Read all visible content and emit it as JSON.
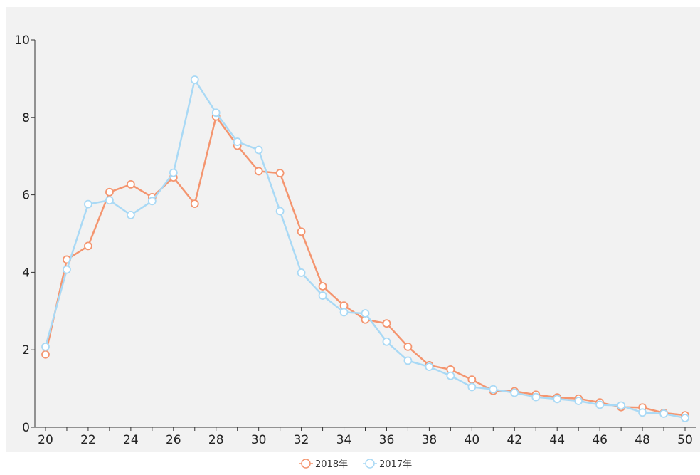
{
  "chart_data": {
    "type": "line",
    "title": "",
    "xlabel": "",
    "ylabel": "",
    "xlim": [
      20,
      50
    ],
    "ylim": [
      0,
      10
    ],
    "x_ticks": [
      "20",
      "22",
      "24",
      "26",
      "28",
      "30",
      "32",
      "34",
      "36",
      "38",
      "40",
      "42",
      "44",
      "46",
      "48",
      "50"
    ],
    "y_ticks": [
      "0",
      "2",
      "4",
      "6",
      "8",
      "10"
    ],
    "grid": false,
    "legend_position": "bottom-center",
    "x": [
      20,
      21,
      22,
      23,
      24,
      25,
      26,
      27,
      28,
      29,
      30,
      31,
      32,
      33,
      34,
      35,
      36,
      37,
      38,
      39,
      40,
      41,
      42,
      43,
      44,
      45,
      46,
      47,
      48,
      49,
      50
    ],
    "series": [
      {
        "name": "2018年",
        "color": "#f4956f",
        "values": [
          1.88,
          4.33,
          4.68,
          6.07,
          6.27,
          5.94,
          6.45,
          5.77,
          8.02,
          7.27,
          6.61,
          6.56,
          5.05,
          3.64,
          3.14,
          2.78,
          2.68,
          2.08,
          1.6,
          1.49,
          1.23,
          0.94,
          0.93,
          0.84,
          0.77,
          0.74,
          0.64,
          0.52,
          0.51,
          0.37,
          0.31
        ]
      },
      {
        "name": "2017年",
        "color": "#a9d9f5",
        "values": [
          2.08,
          4.07,
          5.76,
          5.86,
          5.48,
          5.84,
          6.57,
          8.97,
          8.12,
          7.37,
          7.16,
          5.58,
          3.99,
          3.4,
          2.97,
          2.94,
          2.21,
          1.72,
          1.56,
          1.33,
          1.04,
          0.98,
          0.89,
          0.78,
          0.73,
          0.68,
          0.58,
          0.56,
          0.38,
          0.35,
          0.24
        ]
      }
    ]
  }
}
